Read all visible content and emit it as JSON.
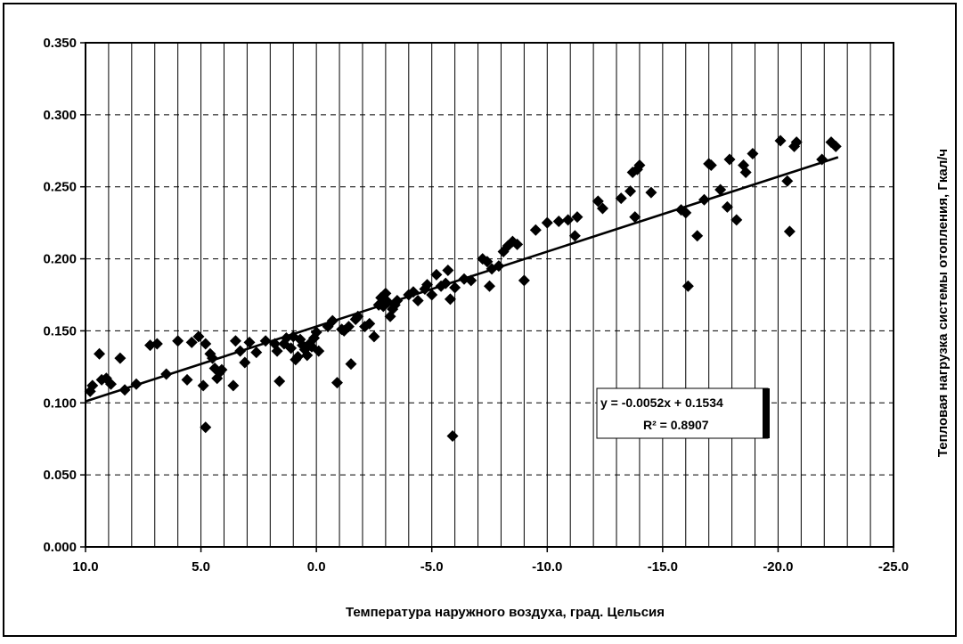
{
  "chart_data": {
    "type": "scatter",
    "title": "",
    "xlabel": "Температура наружного воздуха, град. Цельсия",
    "ylabel": "Тепловая нагрузка системы отопления, Гкал/ч",
    "xlim": [
      10.0,
      -25.0
    ],
    "ylim": [
      0.0,
      0.35
    ],
    "x_reversed": true,
    "grid": "vertical-solid-and-horizontal-dashed",
    "legend": "none",
    "x_ticks": [
      "10.0",
      "5.0",
      "0.0",
      "-5.0",
      "-10.0",
      "-15.0",
      "-20.0",
      "-25.0"
    ],
    "y_ticks": [
      "0.000",
      "0.050",
      "0.100",
      "0.150",
      "0.200",
      "0.250",
      "0.300",
      "0.350"
    ],
    "marker_color": "#000000",
    "trendline": {
      "slope": -0.0052,
      "intercept": 0.153,
      "x_range": [
        10.0,
        -22.6
      ],
      "equation_label": "y = -0.0052x + 0.1534",
      "r2_label": "R² = 0.8907"
    },
    "series": [
      {
        "points": [
          [
            9.8,
            0.108
          ],
          [
            9.7,
            0.112
          ],
          [
            9.4,
            0.134
          ],
          [
            9.3,
            0.116
          ],
          [
            9.1,
            0.117
          ],
          [
            8.9,
            0.113
          ],
          [
            8.5,
            0.131
          ],
          [
            8.3,
            0.109
          ],
          [
            7.8,
            0.113
          ],
          [
            7.2,
            0.14
          ],
          [
            6.9,
            0.141
          ],
          [
            6.5,
            0.12
          ],
          [
            6.0,
            0.143
          ],
          [
            5.6,
            0.116
          ],
          [
            5.4,
            0.142
          ],
          [
            5.1,
            0.146
          ],
          [
            4.9,
            0.112
          ],
          [
            4.8,
            0.141
          ],
          [
            4.8,
            0.083
          ],
          [
            4.6,
            0.134
          ],
          [
            4.5,
            0.131
          ],
          [
            4.4,
            0.124
          ],
          [
            4.3,
            0.117
          ],
          [
            4.2,
            0.121
          ],
          [
            4.1,
            0.123
          ],
          [
            3.6,
            0.112
          ],
          [
            3.5,
            0.143
          ],
          [
            3.3,
            0.136
          ],
          [
            3.1,
            0.128
          ],
          [
            2.9,
            0.142
          ],
          [
            2.6,
            0.135
          ],
          [
            2.2,
            0.143
          ],
          [
            1.8,
            0.141
          ],
          [
            1.7,
            0.136
          ],
          [
            1.6,
            0.115
          ],
          [
            1.4,
            0.141
          ],
          [
            1.3,
            0.145
          ],
          [
            1.1,
            0.138
          ],
          [
            1.0,
            0.146
          ],
          [
            0.9,
            0.13
          ],
          [
            0.8,
            0.132
          ],
          [
            0.7,
            0.144
          ],
          [
            0.6,
            0.14
          ],
          [
            0.5,
            0.137
          ],
          [
            0.4,
            0.133
          ],
          [
            0.3,
            0.141
          ],
          [
            0.2,
            0.139
          ],
          [
            0.1,
            0.145
          ],
          [
            0.0,
            0.149
          ],
          [
            -0.1,
            0.136
          ],
          [
            -0.5,
            0.153
          ],
          [
            -0.7,
            0.157
          ],
          [
            -0.9,
            0.114
          ],
          [
            -1.1,
            0.151
          ],
          [
            -1.2,
            0.15
          ],
          [
            -1.4,
            0.153
          ],
          [
            -1.5,
            0.127
          ],
          [
            -1.7,
            0.158
          ],
          [
            -1.8,
            0.16
          ],
          [
            -2.1,
            0.153
          ],
          [
            -2.3,
            0.155
          ],
          [
            -2.5,
            0.146
          ],
          [
            -2.7,
            0.168
          ],
          [
            -2.8,
            0.173
          ],
          [
            -2.9,
            0.167
          ],
          [
            -3.0,
            0.176
          ],
          [
            -3.1,
            0.17
          ],
          [
            -3.2,
            0.16
          ],
          [
            -3.3,
            0.165
          ],
          [
            -3.4,
            0.168
          ],
          [
            -3.5,
            0.171
          ],
          [
            -4.0,
            0.175
          ],
          [
            -4.2,
            0.177
          ],
          [
            -4.4,
            0.171
          ],
          [
            -4.7,
            0.179
          ],
          [
            -4.8,
            0.182
          ],
          [
            -5.0,
            0.175
          ],
          [
            -5.2,
            0.189
          ],
          [
            -5.4,
            0.181
          ],
          [
            -5.6,
            0.183
          ],
          [
            -5.7,
            0.192
          ],
          [
            -5.8,
            0.172
          ],
          [
            -5.9,
            0.077
          ],
          [
            -6.0,
            0.18
          ],
          [
            -6.4,
            0.186
          ],
          [
            -6.7,
            0.185
          ],
          [
            -7.2,
            0.2
          ],
          [
            -7.4,
            0.198
          ],
          [
            -7.5,
            0.181
          ],
          [
            -7.6,
            0.193
          ],
          [
            -7.9,
            0.195
          ],
          [
            -8.1,
            0.205
          ],
          [
            -8.3,
            0.209
          ],
          [
            -8.5,
            0.212
          ],
          [
            -8.7,
            0.21
          ],
          [
            -9.0,
            0.185
          ],
          [
            -9.5,
            0.22
          ],
          [
            -10.0,
            0.225
          ],
          [
            -10.5,
            0.226
          ],
          [
            -10.9,
            0.227
          ],
          [
            -11.2,
            0.216
          ],
          [
            -11.3,
            0.229
          ],
          [
            -12.2,
            0.24
          ],
          [
            -12.4,
            0.235
          ],
          [
            -13.2,
            0.242
          ],
          [
            -13.6,
            0.247
          ],
          [
            -13.7,
            0.26
          ],
          [
            -13.8,
            0.229
          ],
          [
            -13.9,
            0.262
          ],
          [
            -14.0,
            0.265
          ],
          [
            -14.5,
            0.246
          ],
          [
            -15.8,
            0.234
          ],
          [
            -16.0,
            0.232
          ],
          [
            -16.1,
            0.181
          ],
          [
            -16.5,
            0.216
          ],
          [
            -16.8,
            0.241
          ],
          [
            -17.0,
            0.266
          ],
          [
            -17.1,
            0.265
          ],
          [
            -17.5,
            0.248
          ],
          [
            -17.8,
            0.236
          ],
          [
            -17.9,
            0.269
          ],
          [
            -18.2,
            0.227
          ],
          [
            -18.5,
            0.265
          ],
          [
            -18.6,
            0.26
          ],
          [
            -18.9,
            0.273
          ],
          [
            -20.1,
            0.282
          ],
          [
            -20.4,
            0.254
          ],
          [
            -20.5,
            0.219
          ],
          [
            -20.7,
            0.278
          ],
          [
            -20.8,
            0.281
          ],
          [
            -21.9,
            0.269
          ],
          [
            -22.3,
            0.281
          ],
          [
            -22.5,
            0.278
          ]
        ]
      }
    ]
  }
}
